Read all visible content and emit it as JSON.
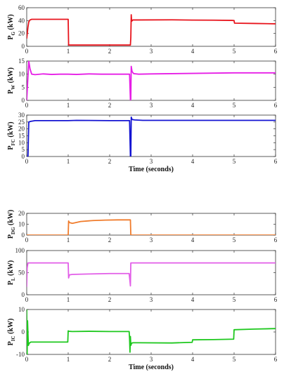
{
  "chart_data": [
    {
      "type": "line",
      "ylabel_main": "P",
      "ylabel_sub": "G",
      "ylabel_unit": " (kW)",
      "xlim": [
        0,
        6
      ],
      "ylim": [
        0,
        60
      ],
      "xticks": [
        "0",
        "1",
        "2",
        "3",
        "4",
        "5",
        "6"
      ],
      "yticks": [
        {
          "v": 0,
          "t": "0"
        },
        {
          "v": 20,
          "t": "20"
        },
        {
          "v": 40,
          "t": "40"
        },
        {
          "v": 60,
          "t": "60"
        }
      ],
      "xlabel": "",
      "grid": false,
      "color": "#e8141c",
      "series": [
        {
          "x": [
            0.0,
            0.03,
            0.05,
            0.08,
            0.12,
            1.0,
            1.01,
            2.5,
            2.51,
            2.52,
            2.53,
            2.56,
            2.7,
            3.5,
            4.0,
            4.5,
            4.95,
            5.0,
            5.01,
            5.5,
            6.0
          ],
          "y": [
            12,
            30,
            38,
            41,
            42,
            42,
            2,
            2,
            14,
            49,
            39,
            41,
            41,
            41.2,
            40.8,
            40.6,
            40.3,
            40,
            36,
            35.5,
            35
          ]
        }
      ]
    },
    {
      "type": "line",
      "ylabel_main": "P",
      "ylabel_sub": "W",
      "ylabel_unit": " (kW)",
      "xlim": [
        0,
        6
      ],
      "ylim": [
        0,
        15
      ],
      "xticks": [
        "0",
        "1",
        "2",
        "3",
        "4",
        "5",
        "6"
      ],
      "yticks": [
        {
          "v": 0,
          "t": "0"
        },
        {
          "v": 5,
          "t": "5"
        },
        {
          "v": 10,
          "t": "10"
        },
        {
          "v": 15,
          "t": "15"
        }
      ],
      "xlabel": "",
      "grid": false,
      "color": "#e61ee6",
      "series": [
        {
          "x": [
            0.0,
            0.02,
            0.05,
            0.08,
            0.12,
            0.2,
            0.4,
            0.6,
            0.8,
            1.0,
            1.2,
            1.5,
            1.8,
            2.1,
            2.4,
            2.48,
            2.5,
            2.51,
            2.52,
            2.54,
            2.58,
            2.7,
            3.0,
            3.5,
            4.0,
            4.5,
            5.0,
            5.5,
            6.0
          ],
          "y": [
            0,
            6,
            15,
            12,
            10,
            9.8,
            10.1,
            9.9,
            10,
            10,
            9.9,
            10.1,
            10,
            10,
            10,
            10,
            0,
            0.5,
            13,
            11,
            10.2,
            10,
            10.1,
            10.2,
            10.3,
            10.4,
            10.5,
            10.5,
            10.5
          ]
        }
      ]
    },
    {
      "type": "line",
      "ylabel_main": "P",
      "ylabel_sub": "FC",
      "ylabel_unit": " (kW)",
      "xlim": [
        0,
        6
      ],
      "ylim": [
        0,
        30
      ],
      "xticks": [
        "0",
        "1",
        "2",
        "3",
        "4",
        "5",
        "6"
      ],
      "yticks": [
        {
          "v": 0,
          "t": "0"
        },
        {
          "v": 5,
          "t": "5"
        },
        {
          "v": 10,
          "t": "10"
        },
        {
          "v": 15,
          "t": "15"
        },
        {
          "v": 20,
          "t": "20"
        },
        {
          "v": 25,
          "t": "25"
        },
        {
          "v": 30,
          "t": "30"
        }
      ],
      "xlabel": "Time (seconds)",
      "grid": false,
      "color": "#1414d2",
      "series": [
        {
          "x": [
            0.0,
            0.03,
            0.05,
            0.1,
            0.2,
            1.0,
            1.2,
            2.0,
            2.48,
            2.5,
            2.51,
            2.52,
            2.54,
            2.6,
            2.8,
            3.0,
            4.0,
            5.0,
            6.0
          ],
          "y": [
            0,
            0,
            25,
            25.5,
            26,
            26,
            26.2,
            26,
            26,
            0,
            0,
            28.5,
            26.8,
            26.5,
            26.2,
            26.2,
            26.2,
            26.2,
            26.2
          ]
        }
      ]
    },
    {
      "type": "line",
      "ylabel_main": "P",
      "ylabel_sub": "DG",
      "ylabel_unit": " (kW)",
      "xlim": [
        0,
        6
      ],
      "ylim": [
        0,
        20
      ],
      "xticks": [
        "0",
        "1",
        "2",
        "3",
        "4",
        "5",
        "6"
      ],
      "yticks": [
        {
          "v": 0,
          "t": "0"
        },
        {
          "v": 10,
          "t": "10"
        },
        {
          "v": 20,
          "t": "20"
        }
      ],
      "xlabel": "",
      "grid": false,
      "color": "#f07c2c",
      "series": [
        {
          "x": [
            0.0,
            1.0,
            1.01,
            1.03,
            1.1,
            1.3,
            1.6,
            1.9,
            2.2,
            2.48,
            2.5,
            2.51,
            3.0,
            4.0,
            5.0,
            6.0
          ],
          "y": [
            0,
            0,
            13,
            11.5,
            10.8,
            12.5,
            13.4,
            13.8,
            14,
            14,
            14,
            0,
            0,
            0,
            0,
            0
          ]
        }
      ]
    },
    {
      "type": "line",
      "ylabel_main": "P",
      "ylabel_sub": "L",
      "ylabel_unit": " (kW)",
      "xlim": [
        0,
        6
      ],
      "ylim": [
        0,
        100
      ],
      "xticks": [
        "0",
        "1",
        "2",
        "3",
        "4",
        "5",
        "6"
      ],
      "yticks": [
        {
          "v": 0,
          "t": "0"
        },
        {
          "v": 50,
          "t": "50"
        },
        {
          "v": 100,
          "t": "100"
        }
      ],
      "xlabel": "",
      "grid": false,
      "color": "#e25ee8",
      "series": [
        {
          "x": [
            0.0,
            0.01,
            0.03,
            1.0,
            1.01,
            1.03,
            1.1,
            1.5,
            2.0,
            2.47,
            2.49,
            2.5,
            2.51,
            3.0,
            4.0,
            5.0,
            6.0
          ],
          "y": [
            18,
            60,
            72,
            72,
            38,
            45,
            46,
            47,
            48,
            48,
            30,
            20,
            72,
            72,
            72,
            72,
            72
          ]
        }
      ]
    },
    {
      "type": "line",
      "ylabel_main": "P",
      "ylabel_sub": "IC",
      "ylabel_unit": " (kW)",
      "xlim": [
        0,
        6
      ],
      "ylim": [
        -10,
        10
      ],
      "xticks": [
        "0",
        "1",
        "2",
        "3",
        "4",
        "5",
        "6"
      ],
      "yticks": [
        {
          "v": -10,
          "t": "-10"
        },
        {
          "v": 0,
          "t": "0"
        },
        {
          "v": 10,
          "t": "10"
        }
      ],
      "xlabel": "Time (seconds)",
      "grid": false,
      "color": "#1ec81e",
      "series": [
        {
          "x": [
            0.0,
            0.01,
            0.02,
            0.04,
            0.06,
            0.1,
            0.3,
            0.6,
            0.99,
            1.0,
            1.02,
            1.1,
            1.5,
            2.0,
            2.47,
            2.48,
            2.49,
            2.5,
            2.51,
            2.53,
            2.56,
            2.7,
            3.5,
            3.99,
            4.0,
            4.5,
            4.99,
            5.0,
            5.5,
            6.0
          ],
          "y": [
            10,
            -10,
            5,
            -6,
            -5,
            -4.5,
            -4.5,
            -4.5,
            -4.5,
            0.5,
            0.3,
            0.2,
            0.3,
            0.2,
            0.2,
            -3,
            -9,
            -2,
            -6,
            -5,
            -4.8,
            -4.8,
            -4.9,
            -4.6,
            -3.5,
            -3.4,
            -3.2,
            1,
            1.3,
            1.5
          ]
        }
      ]
    }
  ]
}
